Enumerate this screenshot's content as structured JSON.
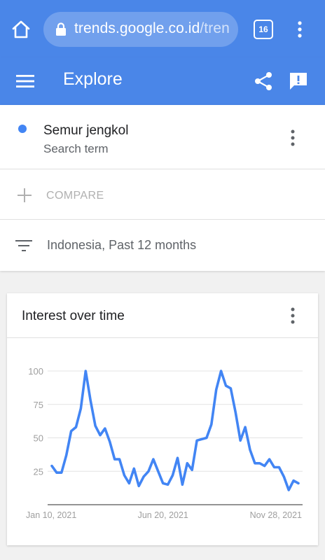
{
  "browser": {
    "url_main": "trends.google.co.id",
    "url_rest": "/tren",
    "tab_count": "16",
    "accent_color": "#4a86e8"
  },
  "app_bar": {
    "title": "Explore",
    "icons": [
      "menu-icon",
      "share-icon",
      "feedback-icon"
    ]
  },
  "search": {
    "term": "Semur jengkol",
    "term_type": "Search term",
    "term_color": "#4285f4",
    "compare_label": "COMPARE",
    "filter_label": "Indonesia, Past 12 months"
  },
  "card": {
    "title": "Interest over time"
  },
  "chart_data": {
    "type": "line",
    "title": "Interest over time",
    "y_ticks": [
      "100",
      "75",
      "50",
      "25"
    ],
    "ylim": [
      0,
      100
    ],
    "x_tick_labels": [
      "Jan 10, 2021",
      "Jun 20, 2021",
      "Nov 28, 2021"
    ],
    "x_tick_index": [
      0,
      23,
      46
    ],
    "grid": true,
    "series": [
      {
        "color": "#4285f4",
        "values": [
          29,
          24,
          24,
          37,
          55,
          58,
          72,
          100,
          78,
          59,
          52,
          57,
          47,
          34,
          34,
          22,
          16,
          27,
          14,
          21,
          25,
          34,
          25,
          16,
          15,
          22,
          35,
          15,
          31,
          26,
          48,
          49,
          50,
          60,
          86,
          100,
          89,
          87,
          69,
          48,
          58,
          41,
          31,
          31,
          29,
          34,
          28,
          28,
          21,
          11,
          18,
          16
        ]
      }
    ]
  }
}
